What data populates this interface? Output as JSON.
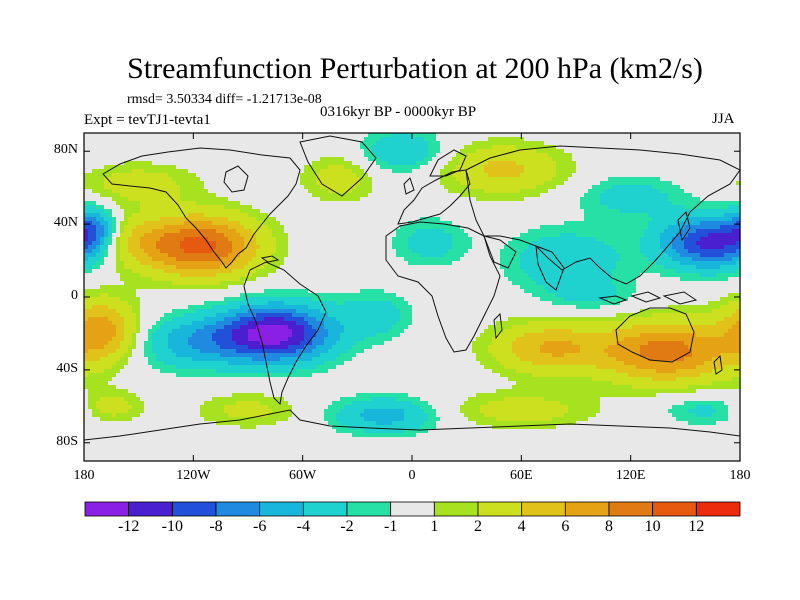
{
  "chart_data": {
    "type": "heatmap",
    "title": "Streamfunction Perturbation at 200 hPa (km2/s)",
    "stats_text": "rmsd= 3.50334 diff= -1.21713e-08",
    "period_text": "0316kyr BP - 0000kyr BP",
    "experiment_text": "Expt = tevTJ1-tevta1",
    "season_text": "JJA",
    "x_range": [
      -180,
      180
    ],
    "y_range": [
      -90,
      90
    ],
    "x_ticks": [
      {
        "value": -180,
        "label": "180"
      },
      {
        "value": -120,
        "label": "120W"
      },
      {
        "value": -60,
        "label": "60W"
      },
      {
        "value": 0,
        "label": "0"
      },
      {
        "value": 60,
        "label": "60E"
      },
      {
        "value": 120,
        "label": "120E"
      },
      {
        "value": 180,
        "label": "180"
      }
    ],
    "y_ticks": [
      {
        "value": 80,
        "label": "80N"
      },
      {
        "value": 40,
        "label": "40N"
      },
      {
        "value": 0,
        "label": "0"
      },
      {
        "value": -40,
        "label": "40S"
      },
      {
        "value": -80,
        "label": "80S"
      }
    ],
    "colorbar": {
      "colors": [
        "#8a1fe6",
        "#4a1fd0",
        "#2250d8",
        "#1f8ae0",
        "#19b6dc",
        "#20d2cf",
        "#26e0a6",
        "#e8e8e8",
        "#a6e21f",
        "#cde020",
        "#e0c21a",
        "#e6a215",
        "#e07a12",
        "#e65a10",
        "#ec2a0c"
      ],
      "labels": [
        "-12",
        "-10",
        "-8",
        "-6",
        "-4",
        "-2",
        "-1",
        "1",
        "2",
        "4",
        "6",
        "8",
        "10",
        "12"
      ]
    },
    "anomalies": [
      {
        "lon": -115,
        "lat": 28,
        "amp": 10.5,
        "sx": 22,
        "sy": 12
      },
      {
        "lon": -155,
        "lat": 30,
        "amp": 4,
        "sx": 18,
        "sy": 10
      },
      {
        "lon": -75,
        "lat": -20,
        "amp": -13,
        "sx": 22,
        "sy": 11
      },
      {
        "lon": -120,
        "lat": -25,
        "amp": -5,
        "sx": 22,
        "sy": 10
      },
      {
        "lon": -20,
        "lat": -10,
        "amp": -3,
        "sx": 14,
        "sy": 9
      },
      {
        "lon": -170,
        "lat": -18,
        "amp": 7,
        "sx": 14,
        "sy": 12
      },
      {
        "lon": 165,
        "lat": 30,
        "amp": -11,
        "sx": 20,
        "sy": 10
      },
      {
        "lon": -175,
        "lat": 38,
        "amp": -6,
        "sx": 8,
        "sy": 8
      },
      {
        "lon": 140,
        "lat": -30,
        "amp": 9,
        "sx": 26,
        "sy": 12
      },
      {
        "lon": 75,
        "lat": -28,
        "amp": 6,
        "sx": 22,
        "sy": 10
      },
      {
        "lon": 85,
        "lat": 20,
        "amp": -4,
        "sx": 22,
        "sy": 12
      },
      {
        "lon": 10,
        "lat": 30,
        "amp": -3,
        "sx": 14,
        "sy": 9
      },
      {
        "lon": 50,
        "lat": 70,
        "amp": 4.5,
        "sx": 24,
        "sy": 10
      },
      {
        "lon": -5,
        "lat": 80,
        "amp": -4,
        "sx": 16,
        "sy": 8
      },
      {
        "lon": 120,
        "lat": 55,
        "amp": -3,
        "sx": 20,
        "sy": 8
      },
      {
        "lon": -150,
        "lat": 62,
        "amp": 3,
        "sx": 22,
        "sy": 8
      },
      {
        "lon": -40,
        "lat": 65,
        "amp": 3,
        "sx": 14,
        "sy": 9
      },
      {
        "lon": -15,
        "lat": -65,
        "amp": -5,
        "sx": 20,
        "sy": 7
      },
      {
        "lon": 60,
        "lat": -62,
        "amp": 3,
        "sx": 28,
        "sy": 7
      },
      {
        "lon": -90,
        "lat": -62,
        "amp": 2.5,
        "sx": 20,
        "sy": 7
      },
      {
        "lon": -165,
        "lat": -60,
        "amp": 3,
        "sx": 12,
        "sy": 6
      },
      {
        "lon": 160,
        "lat": -62,
        "amp": -2.5,
        "sx": 16,
        "sy": 6
      },
      {
        "lon": 100,
        "lat": 0,
        "amp": -2,
        "sx": 18,
        "sy": 6
      }
    ]
  }
}
